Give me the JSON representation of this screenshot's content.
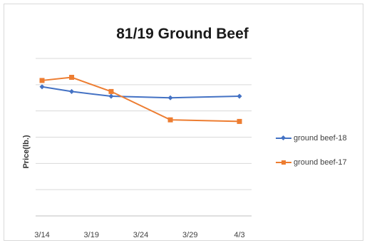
{
  "chart_data": {
    "type": "line",
    "title": "81/19 Ground Beef",
    "xlabel": "",
    "ylabel": "Price(lb.)",
    "x": [
      "3/14",
      "3/17",
      "3/21",
      "3/27",
      "4/3"
    ],
    "x_tick_labels": [
      "3/14",
      "3/19",
      "3/24",
      "3/29",
      "4/3"
    ],
    "ylim": [
      0,
      5
    ],
    "grid": true,
    "legend_position": "right",
    "series": [
      {
        "name": "ground beef-18",
        "color": "#4472C4",
        "marker": "diamond",
        "values": [
          4.1,
          3.95,
          3.8,
          3.75,
          3.8
        ]
      },
      {
        "name": "ground beef-17",
        "color": "#ED7D31",
        "marker": "square",
        "values": [
          4.3,
          4.4,
          3.95,
          3.05,
          3.0
        ]
      }
    ]
  }
}
